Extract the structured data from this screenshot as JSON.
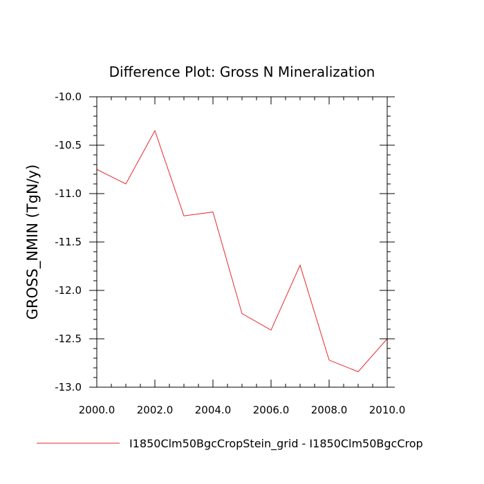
{
  "chart_data": {
    "type": "line",
    "title": "Difference Plot: Gross N Mineralization",
    "ylabel": "GROSS_NMIN  (TgN/y)",
    "xlabel": "",
    "xlim": [
      2000.0,
      2010.0
    ],
    "ylim": [
      -13.0,
      -10.0
    ],
    "x_ticks": [
      2000.0,
      2002.0,
      2004.0,
      2006.0,
      2008.0,
      2010.0
    ],
    "x_tick_labels": [
      "2000.0",
      "2002.0",
      "2004.0",
      "2006.0",
      "2008.0",
      "2010.0"
    ],
    "y_ticks": [
      -10.0,
      -10.5,
      -11.0,
      -11.5,
      -12.0,
      -12.5,
      -13.0
    ],
    "y_tick_labels": [
      "-10.0",
      "-10.5",
      "-11.0",
      "-11.5",
      "-12.0",
      "-12.5",
      "-13.0"
    ],
    "grid": false,
    "legend_position": "bottom",
    "series": [
      {
        "name": "I1850Clm50BgcCropStein_grid - I1850Clm50BgcCrop",
        "color": "#e8262b",
        "x": [
          2000,
          2001,
          2002,
          2003,
          2004,
          2005,
          2006,
          2007,
          2008,
          2009,
          2010
        ],
        "y": [
          -10.75,
          -10.9,
          -10.35,
          -11.23,
          -11.19,
          -12.24,
          -12.41,
          -11.74,
          -12.72,
          -12.84,
          -12.5
        ]
      }
    ]
  }
}
